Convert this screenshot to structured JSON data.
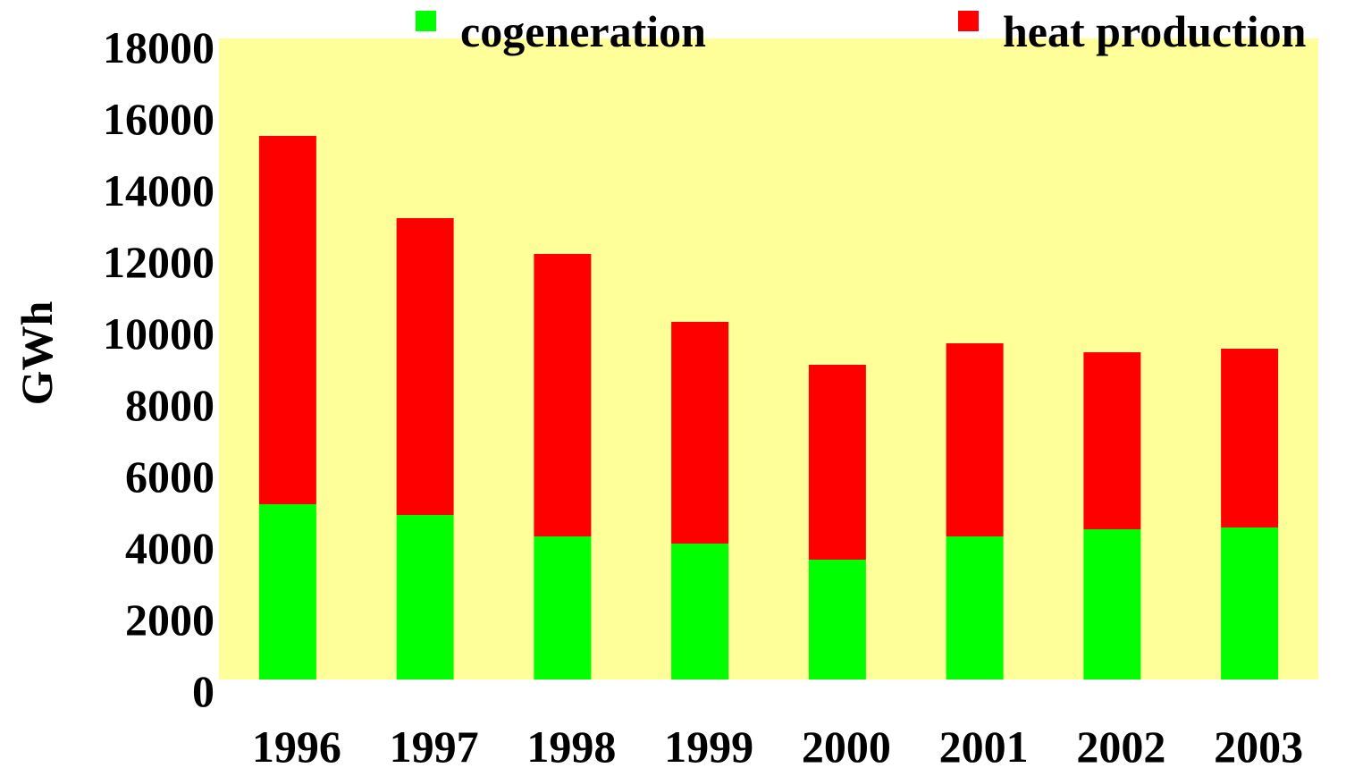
{
  "chart_data": {
    "type": "stacked_bar",
    "y_label": "GWh",
    "categories": [
      "1996",
      "1997",
      "1998",
      "1999",
      "2000",
      "2001",
      "2002",
      "2003"
    ],
    "series": [
      {
        "name": "cogeneration",
        "color": "#00ff00",
        "values": [
          4900,
          4600,
          4000,
          3800,
          3350,
          4000,
          4200,
          4250
        ]
      },
      {
        "name": "heat production",
        "color": "#ff0000",
        "values": [
          10300,
          8300,
          7900,
          6200,
          5450,
          5400,
          4950,
          5000
        ]
      }
    ],
    "ylim": [
      0,
      18000
    ],
    "yticks": [
      0,
      2000,
      4000,
      6000,
      8000,
      10000,
      12000,
      14000,
      16000,
      18000
    ],
    "plot_background": "#ffff99",
    "legend": "top"
  }
}
